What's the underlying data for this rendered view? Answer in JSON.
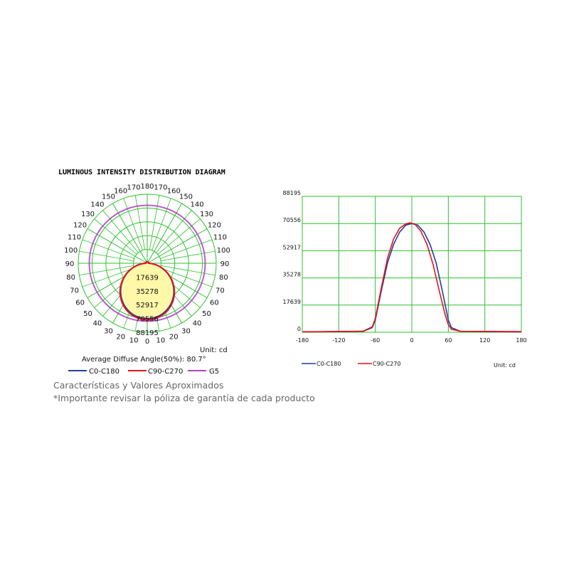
{
  "colors": {
    "grid": "#2ec02e",
    "c0": "#1f3f9e",
    "c90": "#e8121d",
    "g5": "#b23fc8",
    "fill": "#fff8a8"
  },
  "polar": {
    "title": "LUMINOUS INTENSITY DISTRIBUTION DIAGRAM",
    "radial_ticks": [
      "17639",
      "35278",
      "52917",
      "70556",
      "88195"
    ],
    "angle_labels_left": [
      "180",
      "170",
      "160",
      "150",
      "140",
      "130",
      "120",
      "110",
      "100",
      "90",
      "80",
      "70",
      "60",
      "50",
      "40",
      "30",
      "20",
      "10",
      "0"
    ],
    "angle_labels_right": [
      "170",
      "160",
      "150",
      "140",
      "130",
      "120",
      "110",
      "100",
      "90",
      "80",
      "70",
      "60",
      "50",
      "40",
      "30",
      "20",
      "10"
    ],
    "unit": "Unit: cd",
    "avg_angle": "Average Diffuse Angle(50%): 80.7°",
    "legend": [
      "C0-C180",
      "C90-C270",
      "G5"
    ]
  },
  "chart_data": {
    "type": "line",
    "xlim": [
      -180,
      180
    ],
    "ylim": [
      0,
      88195
    ],
    "x_ticks": [
      "-180",
      "-120",
      "-60",
      "0",
      "60",
      "120",
      "180"
    ],
    "y_ticks": [
      "88195",
      "70556",
      "52917",
      "35278",
      "17639",
      "0"
    ],
    "series": [
      {
        "name": "C0-C180",
        "color": "#1f3f9e",
        "x": [
          -180,
          -80,
          -65,
          -60,
          -50,
          -40,
          -30,
          -20,
          -10,
          0,
          10,
          20,
          30,
          40,
          50,
          60,
          65,
          80,
          180
        ],
        "y": [
          200,
          600,
          3000,
          8000,
          27000,
          45000,
          57000,
          65000,
          69500,
          70556,
          69500,
          65000,
          57000,
          45000,
          27000,
          8000,
          3000,
          600,
          200
        ]
      },
      {
        "name": "C90-C270",
        "color": "#e8121d",
        "x": [
          -180,
          -80,
          -65,
          -60,
          -50,
          -40,
          -30,
          -20,
          -10,
          -3,
          5,
          15,
          25,
          35,
          45,
          55,
          60,
          65,
          80,
          180
        ],
        "y": [
          300,
          700,
          3500,
          9000,
          29000,
          48000,
          60500,
          67500,
          70300,
          71000,
          70200,
          65500,
          57000,
          44000,
          27000,
          11000,
          5000,
          2000,
          600,
          400
        ]
      }
    ],
    "unit": "Unit: cd"
  }
}
